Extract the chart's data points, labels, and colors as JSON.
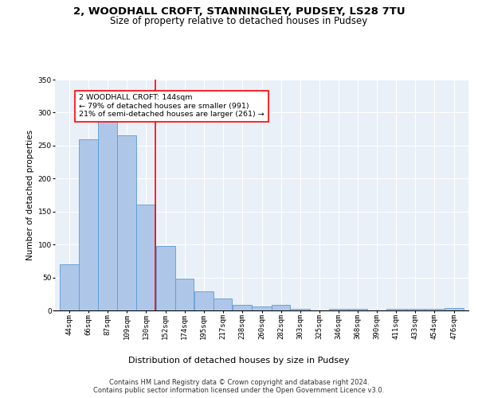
{
  "title_line1": "2, WOODHALL CROFT, STANNINGLEY, PUDSEY, LS28 7TU",
  "title_line2": "Size of property relative to detached houses in Pudsey",
  "xlabel": "Distribution of detached houses by size in Pudsey",
  "ylabel": "Number of detached properties",
  "categories": [
    "44sqm",
    "66sqm",
    "87sqm",
    "109sqm",
    "130sqm",
    "152sqm",
    "174sqm",
    "195sqm",
    "217sqm",
    "238sqm",
    "260sqm",
    "282sqm",
    "303sqm",
    "325sqm",
    "346sqm",
    "368sqm",
    "390sqm",
    "411sqm",
    "433sqm",
    "454sqm",
    "476sqm"
  ],
  "values": [
    70,
    260,
    295,
    265,
    160,
    98,
    48,
    29,
    18,
    9,
    6,
    8,
    3,
    0,
    3,
    3,
    0,
    3,
    3,
    3,
    4
  ],
  "bar_color": "#aec6e8",
  "bar_edge_color": "#5b9bd5",
  "bin_edges": [
    44,
    66,
    87,
    109,
    130,
    152,
    174,
    195,
    217,
    238,
    260,
    282,
    303,
    325,
    346,
    368,
    390,
    411,
    433,
    454,
    476,
    498
  ],
  "annotation_text": "2 WOODHALL CROFT: 144sqm\n← 79% of detached houses are smaller (991)\n21% of semi-detached houses are larger (261) →",
  "annotation_box_color": "white",
  "annotation_box_edge": "red",
  "vline_color": "red",
  "vline_x": 152,
  "ylim": [
    0,
    350
  ],
  "yticks": [
    0,
    50,
    100,
    150,
    200,
    250,
    300,
    350
  ],
  "plot_bg_color": "#eaf0f8",
  "grid_color": "white",
  "footer_text": "Contains HM Land Registry data © Crown copyright and database right 2024.\nContains public sector information licensed under the Open Government Licence v3.0.",
  "title_fontsize": 9.5,
  "subtitle_fontsize": 8.5,
  "xlabel_fontsize": 8,
  "ylabel_fontsize": 7.5,
  "tick_fontsize": 6.5,
  "annotation_fontsize": 6.8,
  "footer_fontsize": 6
}
